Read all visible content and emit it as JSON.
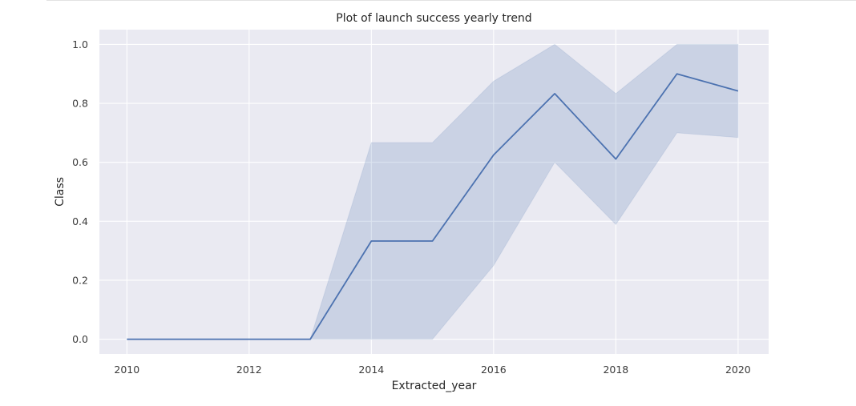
{
  "chart_data": {
    "type": "line",
    "title": "Plot of launch success yearly trend",
    "xlabel": "Extracted_year",
    "ylabel": "Class",
    "x": [
      2010,
      2012,
      2013,
      2014,
      2015,
      2016,
      2017,
      2018,
      2019,
      2020
    ],
    "xlim": [
      2009.55,
      2020.5
    ],
    "ylim": [
      -0.05,
      1.05
    ],
    "xticks": [
      2010,
      2012,
      2014,
      2016,
      2018,
      2020
    ],
    "yticks": [
      0.0,
      0.2,
      0.4,
      0.6,
      0.8,
      1.0
    ],
    "ytick_labels": [
      "0.0",
      "0.2",
      "0.4",
      "0.6",
      "0.8",
      "1.0"
    ],
    "series": [
      {
        "values": [
          0,
          0,
          0,
          0.333,
          0.333,
          0.625,
          0.833,
          0.611,
          0.9,
          0.842
        ],
        "ci_lower": [
          0,
          0,
          0,
          0,
          0,
          0.25,
          0.6,
          0.389,
          0.7,
          0.684
        ],
        "ci_upper": [
          0,
          0,
          0,
          0.667,
          0.667,
          0.875,
          1.0,
          0.833,
          1.0,
          1.0
        ],
        "color": "#4c72b0"
      }
    ],
    "grid": true,
    "background": "#eaeaf2"
  }
}
